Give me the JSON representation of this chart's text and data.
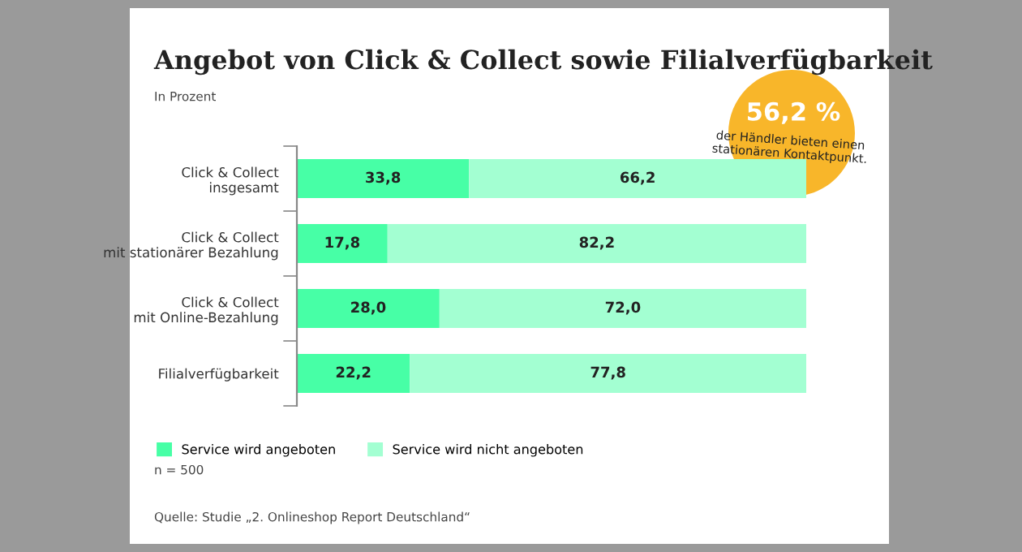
{
  "chart_data": {
    "type": "bar",
    "orientation": "horizontal",
    "stacked": true,
    "title": "Angebot von Click & Collect sowie Filialverfügbarkeit",
    "subtitle": "In Prozent",
    "categories": [
      "Click & Collect\ninsgesamt",
      "Click & Collect\nmit stationärer Bezahlung",
      "Click & Collect\nmit Online-Bezahlung",
      "Filialverfügbarkeit"
    ],
    "series": [
      {
        "name": "Service wird angeboten",
        "color": "#47ffa6",
        "values": [
          33.8,
          17.8,
          28.0,
          22.2
        ],
        "value_labels": [
          "33,8",
          "17,8",
          "28,0",
          "22,2"
        ]
      },
      {
        "name": "Service wird nicht angeboten",
        "color": "#a3ffd2",
        "values": [
          66.2,
          82.2,
          72.0,
          77.8
        ],
        "value_labels": [
          "66,2",
          "82,2",
          "72,0",
          "77,8"
        ]
      }
    ],
    "xlim": [
      0,
      100
    ],
    "tick_labels": "y",
    "legend": "bottom left",
    "annotations": [
      "56,2 %",
      "der Händler bieten einen\nstationären Kontaktpunkt.",
      "n = 500",
      "Quelle: Studie „2. Onlineshop Report Deutschland“"
    ]
  }
}
